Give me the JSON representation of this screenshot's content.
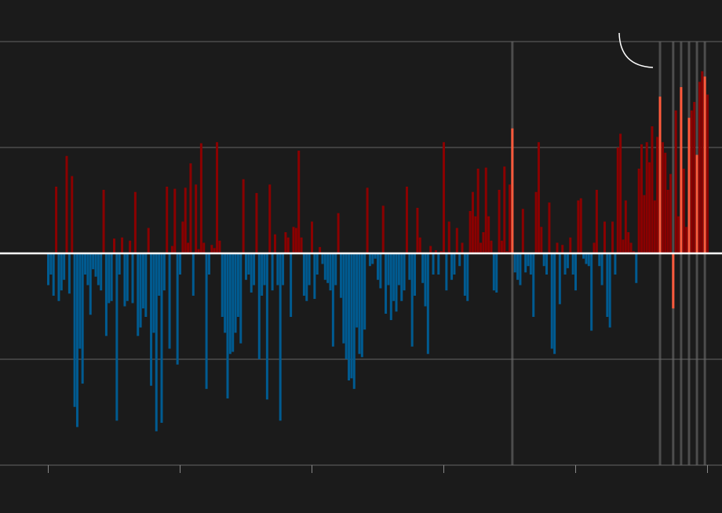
{
  "chart_data": {
    "type": "bar",
    "values": [
      -0.3,
      -0.2,
      -0.4,
      0.63,
      -0.45,
      -0.35,
      -0.25,
      0.92,
      -0.38,
      0.73,
      -1.45,
      -1.64,
      -0.9,
      -1.23,
      -0.2,
      -0.3,
      -0.58,
      -0.15,
      -0.22,
      -0.3,
      -0.35,
      0.6,
      -0.78,
      -0.47,
      -0.45,
      0.14,
      -1.58,
      -0.2,
      0.15,
      -0.5,
      -0.45,
      0.12,
      -0.47,
      0.58,
      -0.78,
      -0.7,
      -0.52,
      -0.6,
      0.24,
      -1.25,
      -0.75,
      -1.68,
      -0.4,
      -1.6,
      -0.35,
      0.63,
      -0.9,
      0.07,
      0.61,
      -1.05,
      -0.2,
      0.3,
      0.62,
      0.1,
      0.85,
      -0.4,
      0.65,
      0.04,
      1.04,
      0.1,
      -1.28,
      -0.2,
      0.08,
      0.05,
      1.05,
      0.12,
      -0.6,
      -0.75,
      -1.37,
      -0.95,
      -0.93,
      -0.75,
      -0.6,
      -0.85,
      0.7,
      -0.25,
      -0.2,
      -0.37,
      -0.3,
      0.57,
      -1.0,
      -0.4,
      -0.3,
      -1.38,
      0.65,
      -0.35,
      0.18,
      -0.3,
      -1.58,
      -0.3,
      0.2,
      0.15,
      -0.6,
      0.25,
      0.24,
      0.97,
      0.15,
      -0.4,
      -0.45,
      -0.3,
      0.3,
      -0.43,
      -0.2,
      0.06,
      -0.1,
      -0.25,
      -0.28,
      -0.35,
      -0.88,
      -0.3,
      0.38,
      -0.42,
      -0.85,
      -1.0,
      -1.2,
      -1.18,
      -1.28,
      -0.7,
      -0.95,
      -0.98,
      -0.72,
      0.62,
      -0.12,
      -0.1,
      -0.05,
      -0.25,
      -0.33,
      0.45,
      -0.57,
      -0.3,
      -0.63,
      -0.45,
      -0.55,
      -0.3,
      -0.45,
      -0.35,
      0.63,
      -0.25,
      -0.88,
      -0.4,
      0.43,
      0.15,
      -0.28,
      -0.5,
      -0.95,
      0.07,
      -0.2,
      0.03,
      -0.2,
      0.02,
      1.05,
      -0.35,
      0.3,
      -0.25,
      -0.2,
      0.24,
      -0.12,
      0.1,
      -0.4,
      -0.45,
      0.4,
      0.58,
      0.35,
      0.8,
      0.1,
      0.2,
      0.81,
      0.35,
      0.12,
      -0.35,
      -0.37,
      0.6,
      0.12,
      0.82,
      0.02,
      0.65,
      1.18,
      -0.18,
      -0.25,
      -0.3,
      0.42,
      -0.18,
      -0.12,
      -0.2,
      -0.6,
      0.58,
      1.05,
      0.25,
      -0.12,
      -0.2,
      0.48,
      -0.9,
      -0.95,
      0.1,
      -0.48,
      0.08,
      -0.2,
      -0.14,
      0.15,
      -0.2,
      -0.35,
      0.5,
      0.52,
      -0.05,
      -0.1,
      -0.12,
      -0.73,
      0.1,
      0.6,
      -0.12,
      -0.3,
      0.3,
      -0.6,
      -0.7,
      0.3,
      -0.2,
      1.0,
      1.13,
      0.13,
      0.5,
      0.2,
      0.1,
      0.02,
      -0.28,
      0.8,
      1.03,
      0.55,
      1.05,
      0.86,
      1.2,
      0.5,
      1.1,
      1.48,
      1.05,
      0.95,
      0.6,
      0.75,
      -0.52,
      1.35,
      0.35,
      1.57,
      0.8,
      0.25,
      1.28,
      1.35,
      1.43,
      0.93,
      1.62,
      1.72,
      1.67,
      1.5
    ],
    "color_positive": "#8b0000",
    "color_negative": "#005b91",
    "highlight_color": "#ff5a3c",
    "highlight": [
      176,
      232,
      237,
      240,
      243,
      246,
      249
    ],
    "ylim": [
      -2,
      2
    ],
    "yticks": [
      -2,
      -1,
      0,
      1,
      2
    ],
    "xticks": [
      0,
      50,
      100,
      150,
      200,
      250
    ],
    "grid": true
  }
}
